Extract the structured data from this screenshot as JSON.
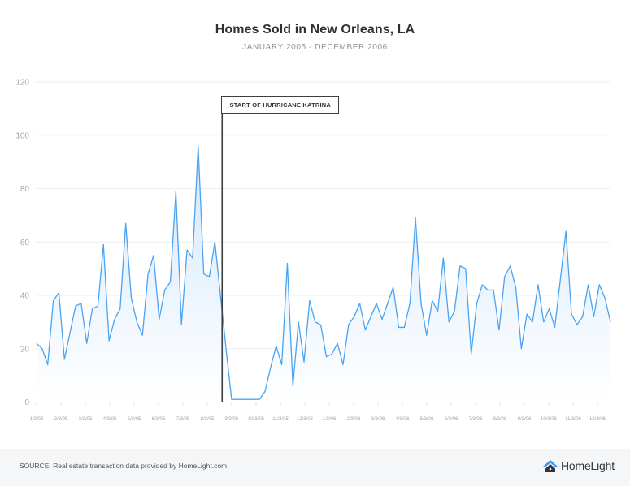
{
  "header": {
    "title": "Homes Sold in New Orleans, LA",
    "subtitle": "JANUARY 2005 - DECEMBER 2006"
  },
  "annotation": {
    "label": "START OF HURRICANE KATRINA",
    "x_index": 33.3
  },
  "footer": {
    "source": "SOURCE: Real estate transaction data provided by HomeLight.com",
    "logo_text": "HomeLight"
  },
  "colors": {
    "line": "#4aa3f2",
    "fill_top": "#cfe5fb",
    "fill_bottom": "#ffffff",
    "grid": "#eceef0",
    "annotation": "#3b3f42",
    "logo_roof": "#3b94e6",
    "logo_house": "#30363a"
  },
  "chart_data": {
    "type": "area",
    "title": "Homes Sold in New Orleans, LA",
    "subtitle": "JANUARY 2005 - DECEMBER 2006",
    "xlabel": "",
    "ylabel": "",
    "ylim": [
      0,
      120
    ],
    "yticks": [
      0,
      20,
      40,
      60,
      80,
      100,
      120
    ],
    "grid": true,
    "legend": "none",
    "x_tick_labels": [
      "1/3/05",
      "2/3/05",
      "3/3/05",
      "4/3/05",
      "5/3/05",
      "6/3/05",
      "7/3/05",
      "8/3/05",
      "9/3/05",
      "10/3/05",
      "11/3/05",
      "12/3/05",
      "1/3/06",
      "2/3/06",
      "3/3/06",
      "4/3/06",
      "5/3/06",
      "6/3/06",
      "7/3/06",
      "8/3/06",
      "9/3/06",
      "10/3/06",
      "11/3/06",
      "12/3/06"
    ],
    "frequency": "weekly",
    "annotations": [
      {
        "label": "START OF HURRICANE KATRINA",
        "approx_date": "late August 2005"
      }
    ],
    "series": [
      {
        "name": "Homes Sold",
        "values": [
          22,
          20,
          14,
          38,
          41,
          16,
          26,
          36,
          37,
          22,
          35,
          36,
          59,
          23,
          31,
          35,
          67,
          39,
          30,
          25,
          48,
          55,
          31,
          42,
          45,
          79,
          29,
          57,
          54,
          96,
          48,
          47,
          60,
          40,
          20,
          1,
          1,
          1,
          1,
          1,
          1,
          4,
          13,
          21,
          14,
          52,
          6,
          30,
          15,
          38,
          30,
          29,
          17,
          18,
          22,
          14,
          29,
          32,
          37,
          27,
          32,
          37,
          31,
          37,
          43,
          28,
          28,
          37,
          69,
          37,
          25,
          38,
          34,
          54,
          30,
          34,
          51,
          50,
          18,
          37,
          44,
          42,
          42,
          27,
          47,
          51,
          43,
          20,
          33,
          30,
          44,
          30,
          35,
          28,
          46,
          64,
          33,
          29,
          32,
          44,
          32,
          44,
          39,
          30
        ]
      }
    ]
  }
}
